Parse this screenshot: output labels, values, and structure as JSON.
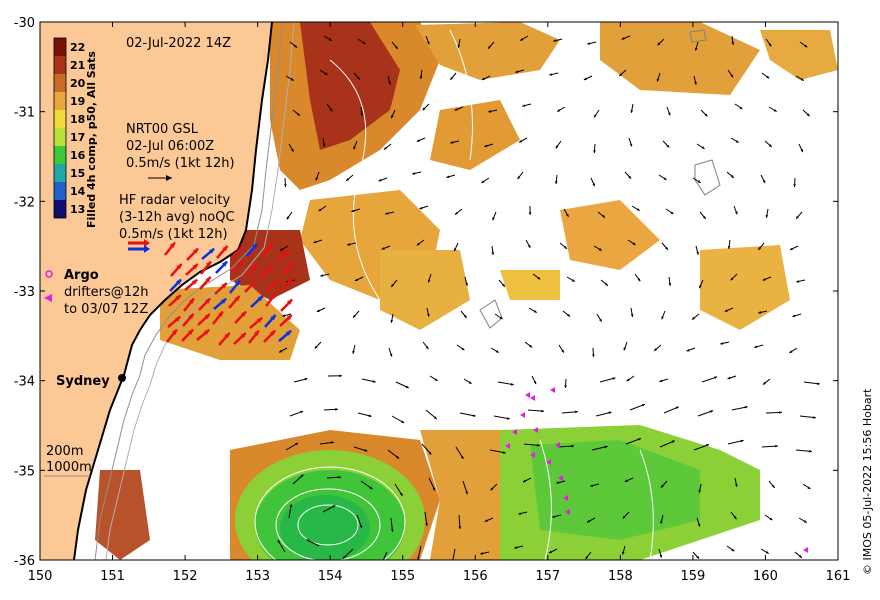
{
  "title": "02-Jul-2022 14Z",
  "colorbar": {
    "label": "Filled 4h comp, p50, All Sats",
    "ticks": [
      "22",
      "21",
      "20",
      "19",
      "18",
      "17",
      "16",
      "15",
      "14",
      "13"
    ],
    "colors": [
      "#7a1208",
      "#a8321a",
      "#c86a28",
      "#e8a640",
      "#eeda38",
      "#b6e03a",
      "#3cc83a",
      "#20a8a8",
      "#2060c8",
      "#101070"
    ]
  },
  "x_ticks": [
    "150",
    "151",
    "152",
    "153",
    "154",
    "155",
    "156",
    "157",
    "158",
    "159",
    "160",
    "161"
  ],
  "y_ticks": [
    "-30",
    "-31",
    "-32",
    "-33",
    "-34",
    "-35",
    "-36"
  ],
  "legend": {
    "gsl_lines": [
      "NRT00 GSL",
      "02-Jul 06:00Z",
      "0.5m/s (1kt 12h)"
    ],
    "radar_lines": [
      "HF radar velocity",
      "(3-12h avg) noQC",
      "0.5m/s (1kt 12h)"
    ],
    "argo_label": "Argo",
    "drifters_lines": [
      "drifters@12h",
      "to 03/07 12Z"
    ],
    "depth_200": "200m",
    "depth_1000": "1000m"
  },
  "place": {
    "name": "Sydney"
  },
  "credit": "© IMOS 05-Jul-2022 15:56 Hobart",
  "colors": {
    "land": "#fcc896",
    "radar_red": "#e81010",
    "radar_blue": "#1030e0",
    "drifter": "#e020e0"
  },
  "chart_data": {
    "type": "map",
    "x_range": [
      150,
      161
    ],
    "y_range": [
      -36,
      -30
    ],
    "xlabel": "",
    "ylabel": "",
    "grid": false
  }
}
